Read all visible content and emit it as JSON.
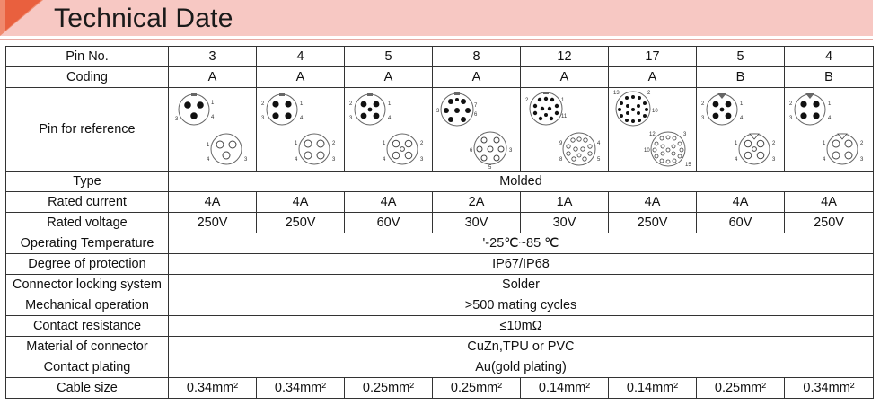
{
  "header": {
    "title": "Technical Date"
  },
  "table": {
    "pin_no": {
      "label": "Pin No.",
      "values": [
        "3",
        "4",
        "5",
        "8",
        "12",
        "17",
        "5",
        "4"
      ]
    },
    "coding": {
      "label": "Coding",
      "values": [
        "A",
        "A",
        "A",
        "A",
        "A",
        "A",
        "B",
        "B"
      ]
    },
    "pin_reference": {
      "label": "Pin for reference"
    },
    "type": {
      "label": "Type",
      "value": "Molded"
    },
    "rated_current": {
      "label": "Rated current",
      "values": [
        "4A",
        "4A",
        "4A",
        "2A",
        "1A",
        "4A",
        "4A",
        "4A"
      ]
    },
    "rated_voltage": {
      "label": "Rated voltage",
      "values": [
        "250V",
        "250V",
        "60V",
        "30V",
        "30V",
        "250V",
        "60V",
        "250V"
      ]
    },
    "operating_temperature": {
      "label": "Operating Temperature",
      "value": "'-25℃~85 ℃"
    },
    "degree_of_protection": {
      "label": "Degree of protection",
      "value": "IP67/IP68"
    },
    "locking_system": {
      "label": "Connector locking system",
      "value": "Solder"
    },
    "mechanical_operation": {
      "label": "Mechanical operation",
      "value": ">500 mating cycles"
    },
    "contact_resistance": {
      "label": "Contact resistance",
      "value": "≤10mΩ"
    },
    "material": {
      "label": "Material of connector",
      "value": "CuZn,TPU or PVC"
    },
    "contact_plating": {
      "label": "Contact plating",
      "value": "Au(gold plating)"
    },
    "cable_size": {
      "label": "Cable size",
      "values": [
        "0.34mm²",
        "0.34mm²",
        "0.25mm²",
        "0.25mm²",
        "0.14mm²",
        "0.14mm²",
        "0.25mm²",
        "0.34mm²"
      ]
    }
  }
}
